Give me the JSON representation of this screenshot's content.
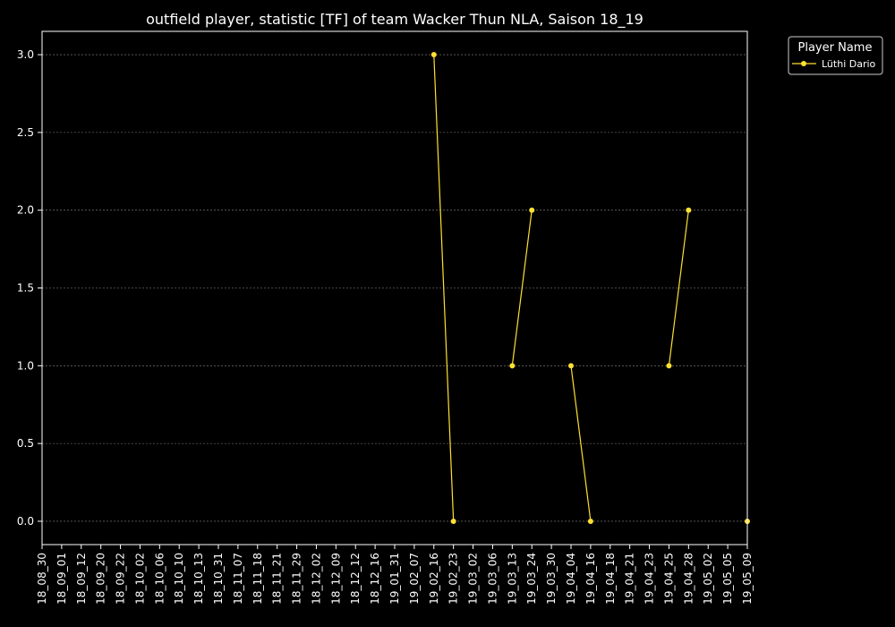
{
  "chart_data": {
    "type": "line",
    "title": "outfield player, statistic [TF] of team Wacker Thun NLA, Saison 18_19",
    "xlabel": "",
    "ylabel": "",
    "categories": [
      "18_08_30",
      "18_09_01",
      "18_09_12",
      "18_09_20",
      "18_09_22",
      "18_10_02",
      "18_10_06",
      "18_10_10",
      "18_10_13",
      "18_10_31",
      "18_11_07",
      "18_11_18",
      "18_11_21",
      "18_11_29",
      "18_12_02",
      "18_12_09",
      "18_12_12",
      "18_12_16",
      "19_01_31",
      "19_02_07",
      "19_02_16",
      "19_02_23",
      "19_03_02",
      "19_03_06",
      "19_03_13",
      "19_03_24",
      "19_03_30",
      "19_04_04",
      "19_04_16",
      "19_04_18",
      "19_04_21",
      "19_04_23",
      "19_04_25",
      "19_04_28",
      "19_05_02",
      "19_05_05",
      "19_05_09"
    ],
    "ylim": [
      -0.15,
      3.15
    ],
    "yticks": [
      "0.0",
      "0.5",
      "1.0",
      "1.5",
      "2.0",
      "2.5",
      "3.0"
    ],
    "grid": true,
    "legend_title": "Player Name",
    "legend_position": "outside-top-right",
    "series": [
      {
        "name": "Lüthi Dario",
        "color": "#ffe033",
        "values": [
          null,
          null,
          null,
          null,
          null,
          null,
          null,
          null,
          null,
          null,
          null,
          null,
          null,
          null,
          null,
          null,
          null,
          null,
          null,
          null,
          3,
          0,
          null,
          null,
          1,
          2,
          null,
          1,
          0,
          null,
          null,
          null,
          1,
          2,
          null,
          null,
          0
        ]
      }
    ]
  }
}
